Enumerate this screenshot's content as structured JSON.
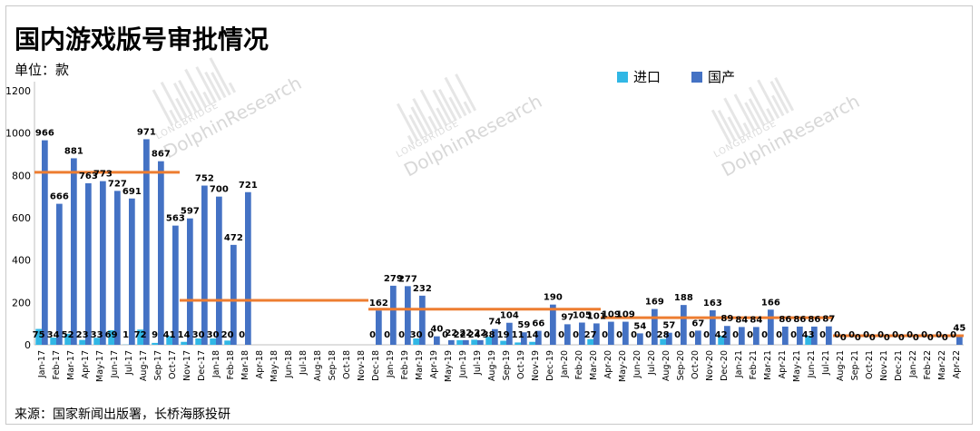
{
  "page": {
    "title": "国内游戏版号审批情况",
    "unit": "单位：款",
    "source": "来源：国家新闻出版署，长桥海豚投研"
  },
  "watermark": {
    "brand": "DolphinResearch",
    "sub": "LONGBRIDGE"
  },
  "chart_data": {
    "type": "bar",
    "title": "国内游戏版号审批情况",
    "ylabel": "单位：款",
    "ylim": [
      0,
      1200
    ],
    "yticks": [
      0,
      200,
      400,
      600,
      800,
      1000,
      1200
    ],
    "legend_position": "top-right",
    "grid": false,
    "categories": [
      "Jan-17",
      "Feb-17",
      "Mar-17",
      "Apr-17",
      "May-17",
      "Jun-17",
      "Jul-17",
      "Aug-17",
      "Sep-17",
      "Oct-17",
      "Nov-17",
      "Dec-17",
      "Jan-18",
      "Feb-18",
      "Mar-18",
      "Apr-18",
      "May-18",
      "Jun-18",
      "Jul-18",
      "Aug-18",
      "Sep-18",
      "Oct-18",
      "Nov-18",
      "Dec-18",
      "Jan-19",
      "Feb-19",
      "Mar-19",
      "Apr-19",
      "May-19",
      "Jun-19",
      "Jul-19",
      "Aug-19",
      "Sep-19",
      "Oct-19",
      "Nov-19",
      "Dec-19",
      "Jan-20",
      "Feb-20",
      "Mar-20",
      "Apr-20",
      "May-20",
      "Jun-20",
      "Jul-20",
      "Aug-20",
      "Sep-20",
      "Oct-20",
      "Nov-20",
      "Dec-20",
      "Jan-21",
      "Feb-21",
      "Mar-21",
      "Apr-21",
      "May-21",
      "Jun-21",
      "Jul-21",
      "Aug-21",
      "Sep-21",
      "Oct-21",
      "Nov-21",
      "Dec-21",
      "Jan-22",
      "Feb-22",
      "Mar-22",
      "Apr-22"
    ],
    "xtick_labels": [
      "Jan-17",
      "Feb-17",
      "Mar-17",
      "Apr-17",
      "May-17",
      "Jun-17",
      "Jul-17",
      "Aug-17",
      "Sep-17",
      "Oct-17",
      "Nov-17",
      "Dec-17",
      "Jan-18",
      "Feb-18",
      "Mar-18",
      "Apr-18",
      "May-18",
      "Jun-18",
      "Jul-18",
      "Aug-18",
      "Sep-18",
      "Oct-18",
      "Nov-18",
      "Dec-18",
      "Jan-19",
      "Feb-19",
      "Mar-19",
      "Apr-19",
      "May-19",
      "Jun-19",
      "Jul-19",
      "Aug-19",
      "Sep-19",
      "Oct-19",
      "Nov-19",
      "Dec-19",
      "Jan-20",
      "Feb-20",
      "Mar-20",
      "Apr-20",
      "May-20",
      "Jun-20",
      "Jul-20",
      "Aug-20",
      "Sep-20",
      "Oct-20",
      "Nov-20",
      "Dec-20",
      "Jan-21",
      "Feb-21",
      "Mar-21",
      "Apr-21",
      "May-21",
      "Jun-21",
      "Jul-21",
      "Aug-21",
      "Sep-21",
      "Oct-21",
      "Nov-21",
      "Dec-21",
      "Jan-22",
      "Feb-22",
      "Mar-22",
      "Apr-22"
    ],
    "series": [
      {
        "name": "进口",
        "color": "#31b7e5",
        "values": [
          75,
          34,
          52,
          23,
          33,
          69,
          1,
          72,
          9,
          41,
          14,
          30,
          30,
          20,
          0,
          null,
          null,
          null,
          null,
          null,
          null,
          null,
          null,
          0,
          0,
          0,
          30,
          0,
          0,
          22,
          24,
          38,
          19,
          11,
          14,
          0,
          0,
          0,
          27,
          0,
          0,
          0,
          0,
          28,
          0,
          0,
          0,
          42,
          0,
          0,
          0,
          0,
          0,
          43,
          0,
          0,
          0,
          0,
          0,
          0,
          0,
          0,
          0,
          0
        ],
        "labels": [
          "75",
          "34",
          "52",
          "23",
          "33",
          "69",
          "1",
          "72",
          "9",
          "41",
          "14",
          "30",
          "30",
          "20",
          "0",
          "",
          "",
          "",
          "",
          "",
          "",
          "",
          "",
          "0",
          "0",
          "0",
          "30",
          "0",
          "0",
          "22",
          "24",
          "38",
          "19",
          "11",
          "14",
          "0",
          "0",
          "0",
          "27",
          "0",
          "0",
          "0",
          "0",
          "28",
          "0",
          "0",
          "0",
          "42",
          "0",
          "0",
          "0",
          "0",
          "0",
          "43",
          "0",
          "0",
          "0",
          "0",
          "0",
          "0",
          "0",
          "0",
          "0",
          "0"
        ]
      },
      {
        "name": "国产",
        "color": "#4472c4",
        "values": [
          966,
          666,
          881,
          763,
          773,
          727,
          691,
          971,
          867,
          563,
          597,
          752,
          700,
          472,
          721,
          null,
          null,
          null,
          null,
          null,
          null,
          null,
          null,
          162,
          279,
          277,
          232,
          40,
          22,
          22,
          22,
          74,
          104,
          59,
          66,
          190,
          97,
          105,
          101,
          109,
          109,
          54,
          169,
          57,
          188,
          67,
          163,
          89,
          84,
          84,
          166,
          86,
          86,
          86,
          87,
          0,
          0,
          0,
          0,
          0,
          0,
          0,
          0,
          45
        ],
        "labels": [
          "966",
          "666",
          "881",
          "763",
          "773",
          "727",
          "691",
          "971",
          "867",
          "563",
          "597",
          "752",
          "700",
          "472",
          "721",
          "",
          "",
          "",
          "",
          "",
          "",
          "",
          "",
          "162",
          "279",
          "277",
          "232",
          "40",
          "22",
          "22",
          "22",
          "74",
          "104",
          "59",
          "66",
          "190",
          "97",
          "105",
          "101",
          "109",
          "109",
          "54",
          "169",
          "57",
          "188",
          "67",
          "163",
          "89",
          "84",
          "84",
          "166",
          "86",
          "86",
          "86",
          "87",
          "0",
          "0",
          "0",
          "0",
          "0",
          "0",
          "0",
          "0",
          "45"
        ]
      }
    ],
    "average_lines": {
      "color": "#ed7d31",
      "segments": [
        {
          "from": "Jan-17",
          "to": "Oct-17",
          "value": 815
        },
        {
          "from": "Nov-17",
          "to": "Nov-18",
          "value": 210
        },
        {
          "from": "Dec-18",
          "to": "Mar-20",
          "value": 168
        },
        {
          "from": "Apr-20",
          "to": "Jul-21",
          "value": 128
        },
        {
          "from": "Aug-21",
          "to": "Apr-22",
          "value": 43
        }
      ]
    }
  }
}
